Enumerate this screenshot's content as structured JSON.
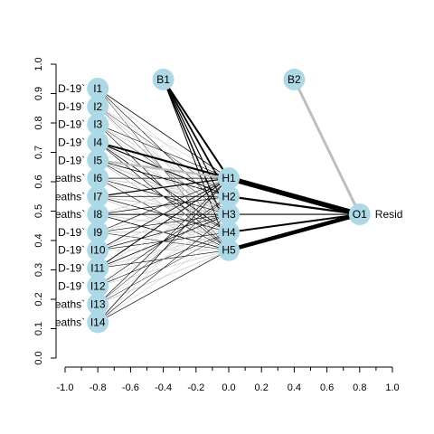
{
  "chart_data": {
    "type": "network",
    "xlim": [
      -1.0,
      1.0
    ],
    "ylim": [
      0.0,
      1.0
    ],
    "x_ticks": [
      "-1.0",
      "-0.8",
      "-0.6",
      "-0.4",
      "-0.2",
      "0.0",
      "0.2",
      "0.4",
      "0.6",
      "0.8",
      "1.0"
    ],
    "y_ticks": [
      "0.0",
      "0.1",
      "0.2",
      "0.3",
      "0.4",
      "0.5",
      "0.6",
      "0.7",
      "0.8",
      "0.9",
      "1.0"
    ],
    "node_color": "#add8e6",
    "nodes": [
      {
        "id": "I1",
        "x": -0.8,
        "y": 0.917
      },
      {
        "id": "I2",
        "x": -0.8,
        "y": 0.856
      },
      {
        "id": "I3",
        "x": -0.8,
        "y": 0.795
      },
      {
        "id": "I4",
        "x": -0.8,
        "y": 0.734
      },
      {
        "id": "I5",
        "x": -0.8,
        "y": 0.673
      },
      {
        "id": "I6",
        "x": -0.8,
        "y": 0.612
      },
      {
        "id": "I7",
        "x": -0.8,
        "y": 0.55
      },
      {
        "id": "I8",
        "x": -0.8,
        "y": 0.489
      },
      {
        "id": "I9",
        "x": -0.8,
        "y": 0.428
      },
      {
        "id": "I10",
        "x": -0.8,
        "y": 0.367
      },
      {
        "id": "I11",
        "x": -0.8,
        "y": 0.306
      },
      {
        "id": "I12",
        "x": -0.8,
        "y": 0.245
      },
      {
        "id": "I13",
        "x": -0.8,
        "y": 0.183
      },
      {
        "id": "I14",
        "x": -0.8,
        "y": 0.122
      },
      {
        "id": "B1",
        "x": -0.4,
        "y": 0.948
      },
      {
        "id": "H1",
        "x": 0.0,
        "y": 0.612
      },
      {
        "id": "H2",
        "x": 0.0,
        "y": 0.55
      },
      {
        "id": "H3",
        "x": 0.0,
        "y": 0.489
      },
      {
        "id": "H4",
        "x": 0.0,
        "y": 0.428
      },
      {
        "id": "H5",
        "x": 0.0,
        "y": 0.367
      },
      {
        "id": "B2",
        "x": 0.4,
        "y": 0.948
      },
      {
        "id": "O1",
        "x": 0.8,
        "y": 0.489
      }
    ],
    "input_labels": [
      "D-19`",
      "D-19`",
      "D-19`",
      "D-19`",
      "D-19`",
      "eaths`",
      "eaths`",
      "eaths`",
      "D-19`",
      "D-19`",
      "D-19`",
      "D-19`",
      "eaths`",
      "eaths`"
    ],
    "output_label": "Resid",
    "edges": [
      {
        "from": "H1",
        "to": "O1",
        "color": "black",
        "weight": 5.5
      },
      {
        "from": "H2",
        "to": "O1",
        "color": "black",
        "weight": 2.2
      },
      {
        "from": "H3",
        "to": "O1",
        "color": "black",
        "weight": 1.2
      },
      {
        "from": "H4",
        "to": "O1",
        "color": "black",
        "weight": 2.0
      },
      {
        "from": "H5",
        "to": "O1",
        "color": "black",
        "weight": 4.5
      },
      {
        "from": "B2",
        "to": "O1",
        "color": "grey",
        "weight": 3.0
      },
      {
        "from": "B1",
        "to": "H1",
        "color": "black",
        "weight": 2.0
      },
      {
        "from": "B1",
        "to": "H2",
        "color": "black",
        "weight": 1.8
      },
      {
        "from": "B1",
        "to": "H3",
        "color": "black",
        "weight": 1.2
      },
      {
        "from": "B1",
        "to": "H4",
        "color": "black",
        "weight": 1.5
      },
      {
        "from": "B1",
        "to": "H5",
        "color": "black",
        "weight": 1.0
      },
      {
        "from": "I1",
        "to": "H1",
        "color": "black",
        "weight": 0.8
      },
      {
        "from": "I1",
        "to": "H2",
        "color": "grey",
        "weight": 0.5
      },
      {
        "from": "I1",
        "to": "H3",
        "color": "black",
        "weight": 0.6
      },
      {
        "from": "I1",
        "to": "H4",
        "color": "grey",
        "weight": 0.5
      },
      {
        "from": "I1",
        "to": "H5",
        "color": "black",
        "weight": 0.5
      },
      {
        "from": "I2",
        "to": "H1",
        "color": "grey",
        "weight": 0.5
      },
      {
        "from": "I2",
        "to": "H2",
        "color": "black",
        "weight": 0.5
      },
      {
        "from": "I2",
        "to": "H3",
        "color": "grey",
        "weight": 0.6
      },
      {
        "from": "I2",
        "to": "H4",
        "color": "black",
        "weight": 0.4
      },
      {
        "from": "I2",
        "to": "H5",
        "color": "grey",
        "weight": 0.5
      },
      {
        "from": "I3",
        "to": "H1",
        "color": "black",
        "weight": 0.6
      },
      {
        "from": "I3",
        "to": "H2",
        "color": "grey",
        "weight": 0.5
      },
      {
        "from": "I3",
        "to": "H3",
        "color": "black",
        "weight": 0.5
      },
      {
        "from": "I3",
        "to": "H4",
        "color": "grey",
        "weight": 0.5
      },
      {
        "from": "I3",
        "to": "H5",
        "color": "black",
        "weight": 0.6
      },
      {
        "from": "I4",
        "to": "H1",
        "color": "black",
        "weight": 2.0
      },
      {
        "from": "I4",
        "to": "H2",
        "color": "black",
        "weight": 1.2
      },
      {
        "from": "I4",
        "to": "H3",
        "color": "grey",
        "weight": 0.8
      },
      {
        "from": "I4",
        "to": "H4",
        "color": "black",
        "weight": 0.8
      },
      {
        "from": "I4",
        "to": "H5",
        "color": "black",
        "weight": 0.6
      },
      {
        "from": "I5",
        "to": "H1",
        "color": "grey",
        "weight": 2.5
      },
      {
        "from": "I5",
        "to": "H2",
        "color": "black",
        "weight": 0.8
      },
      {
        "from": "I5",
        "to": "H3",
        "color": "grey",
        "weight": 1.0
      },
      {
        "from": "I5",
        "to": "H4",
        "color": "black",
        "weight": 0.6
      },
      {
        "from": "I5",
        "to": "H5",
        "color": "grey",
        "weight": 0.8
      },
      {
        "from": "I6",
        "to": "H1",
        "color": "black",
        "weight": 0.8
      },
      {
        "from": "I6",
        "to": "H2",
        "color": "grey",
        "weight": 0.6
      },
      {
        "from": "I6",
        "to": "H3",
        "color": "black",
        "weight": 0.7
      },
      {
        "from": "I6",
        "to": "H4",
        "color": "grey",
        "weight": 0.5
      },
      {
        "from": "I6",
        "to": "H5",
        "color": "black",
        "weight": 0.6
      },
      {
        "from": "I7",
        "to": "H1",
        "color": "black",
        "weight": 1.2
      },
      {
        "from": "I7",
        "to": "H2",
        "color": "black",
        "weight": 0.7
      },
      {
        "from": "I7",
        "to": "H3",
        "color": "grey",
        "weight": 0.8
      },
      {
        "from": "I7",
        "to": "H4",
        "color": "black",
        "weight": 0.7
      },
      {
        "from": "I7",
        "to": "H5",
        "color": "grey",
        "weight": 0.6
      },
      {
        "from": "I8",
        "to": "H1",
        "color": "grey",
        "weight": 0.6
      },
      {
        "from": "I8",
        "to": "H2",
        "color": "black",
        "weight": 0.8
      },
      {
        "from": "I8",
        "to": "H3",
        "color": "black",
        "weight": 1.0
      },
      {
        "from": "I8",
        "to": "H4",
        "color": "grey",
        "weight": 0.6
      },
      {
        "from": "I8",
        "to": "H5",
        "color": "black",
        "weight": 0.8
      },
      {
        "from": "I9",
        "to": "H1",
        "color": "black",
        "weight": 0.6
      },
      {
        "from": "I9",
        "to": "H2",
        "color": "grey",
        "weight": 0.5
      },
      {
        "from": "I9",
        "to": "H3",
        "color": "black",
        "weight": 0.6
      },
      {
        "from": "I9",
        "to": "H4",
        "color": "grey",
        "weight": 0.8
      },
      {
        "from": "I9",
        "to": "H5",
        "color": "black",
        "weight": 0.5
      },
      {
        "from": "I10",
        "to": "H1",
        "color": "black",
        "weight": 0.8
      },
      {
        "from": "I10",
        "to": "H2",
        "color": "grey",
        "weight": 0.6
      },
      {
        "from": "I10",
        "to": "H3",
        "color": "black",
        "weight": 0.7
      },
      {
        "from": "I10",
        "to": "H4",
        "color": "black",
        "weight": 0.6
      },
      {
        "from": "I10",
        "to": "H5",
        "color": "grey",
        "weight": 0.5
      },
      {
        "from": "I11",
        "to": "H1",
        "color": "black",
        "weight": 1.0
      },
      {
        "from": "I11",
        "to": "H2",
        "color": "grey",
        "weight": 0.5
      },
      {
        "from": "I11",
        "to": "H3",
        "color": "black",
        "weight": 0.8
      },
      {
        "from": "I11",
        "to": "H4",
        "color": "grey",
        "weight": 0.6
      },
      {
        "from": "I11",
        "to": "H5",
        "color": "black",
        "weight": 0.6
      },
      {
        "from": "I12",
        "to": "H1",
        "color": "grey",
        "weight": 0.5
      },
      {
        "from": "I12",
        "to": "H2",
        "color": "black",
        "weight": 0.6
      },
      {
        "from": "I12",
        "to": "H3",
        "color": "grey",
        "weight": 0.5
      },
      {
        "from": "I12",
        "to": "H4",
        "color": "black",
        "weight": 0.6
      },
      {
        "from": "I12",
        "to": "H5",
        "color": "grey",
        "weight": 0.5
      },
      {
        "from": "I13",
        "to": "H1",
        "color": "black",
        "weight": 0.6
      },
      {
        "from": "I13",
        "to": "H2",
        "color": "black",
        "weight": 0.5
      },
      {
        "from": "I13",
        "to": "H3",
        "color": "grey",
        "weight": 0.5
      },
      {
        "from": "I13",
        "to": "H4",
        "color": "black",
        "weight": 0.5
      },
      {
        "from": "I13",
        "to": "H5",
        "color": "grey",
        "weight": 0.6
      },
      {
        "from": "I14",
        "to": "H1",
        "color": "black",
        "weight": 0.7
      },
      {
        "from": "I14",
        "to": "H2",
        "color": "grey",
        "weight": 0.5
      },
      {
        "from": "I14",
        "to": "H3",
        "color": "black",
        "weight": 0.6
      },
      {
        "from": "I14",
        "to": "H4",
        "color": "grey",
        "weight": 0.5
      },
      {
        "from": "I14",
        "to": "H5",
        "color": "black",
        "weight": 0.7
      }
    ]
  }
}
